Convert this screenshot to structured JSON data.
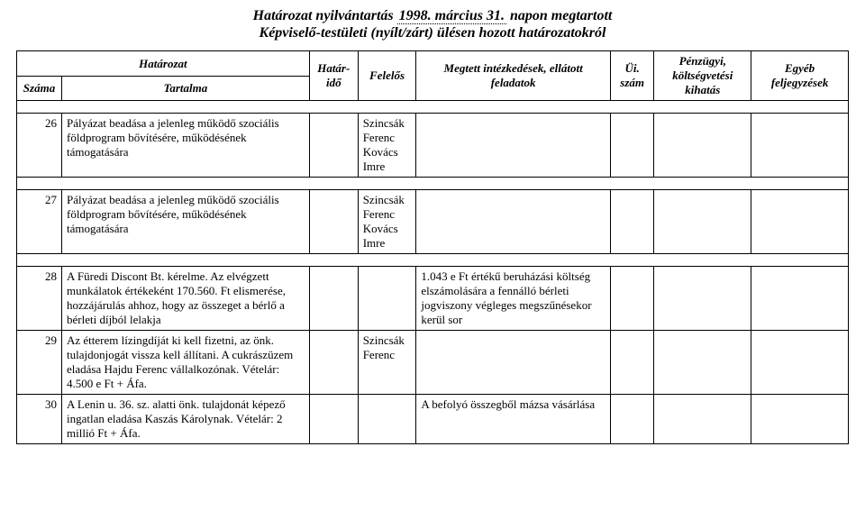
{
  "title": {
    "line1_prefix": "Határozat nyilvántartás",
    "date": "1998. március 31.",
    "line1_suffix": "napon megtartott",
    "line2": "Képviselő-testületi (nyílt/zárt) ülésen hozott határozatokról"
  },
  "headers": {
    "hatarozat": "Határozat",
    "szama": "Száma",
    "tartalma": "Tartalma",
    "hatarido": "Határ-\nidő",
    "felelos": "Felelős",
    "megtett": "Megtett intézkedések, ellátott feladatok",
    "ui": "Üi. szám",
    "penz": "Pénzügyi, költségvetési kihatás",
    "egyeb": "Egyéb feljegyzések"
  },
  "rows": [
    {
      "szama": "26",
      "tartalma": "Pályázat beadása a jelenleg működő szociális földprogram bővítésére, működésének támogatására",
      "felelos": "Szincsák Ferenc Kovács Imre",
      "megtett": "",
      "ui": "",
      "penz": "",
      "egyeb": ""
    }
  ],
  "rows2": [
    {
      "szama": "27",
      "tartalma": "Pályázat beadása a jelenleg működő szociális földprogram bővítésére, működésének támogatására",
      "felelos": "Szincsák Ferenc Kovács Imre",
      "megtett": "",
      "ui": "",
      "penz": "",
      "egyeb": ""
    }
  ],
  "rows3": [
    {
      "szama": "28",
      "tartalma": "A Füredi Discont Bt. kérelme. Az elvégzett munkálatok értékeként 170.560. Ft elismerése, hozzájárulás ahhoz, hogy az összeget a bérlő a bérleti díjból lelakja",
      "felelos": "",
      "megtett": "1.043 e Ft értékű beruházási költség elszámolására a fennálló bérleti jogviszony végleges megszűnésekor kerül sor",
      "ui": "",
      "penz": "",
      "egyeb": ""
    },
    {
      "szama": "29",
      "tartalma": "Az étterem lízingdíját ki kell fizetni, az önk. tulajdonjogát vissza kell állítani. A cukrászüzem eladása Hajdu Ferenc vállalkozónak. Vételár: 4.500 e Ft + Áfa.",
      "felelos": "Szincsák Ferenc",
      "megtett": "",
      "ui": "",
      "penz": "",
      "egyeb": ""
    },
    {
      "szama": "30",
      "tartalma": "A Lenin u. 36. sz. alatti önk. tulajdonát képező ingatlan eladása Kaszás Károlynak. Vételár: 2 millió Ft + Áfa.",
      "felelos": "",
      "megtett": "A befolyó összegből mázsa vásárlása",
      "ui": "",
      "penz": "",
      "egyeb": ""
    }
  ]
}
